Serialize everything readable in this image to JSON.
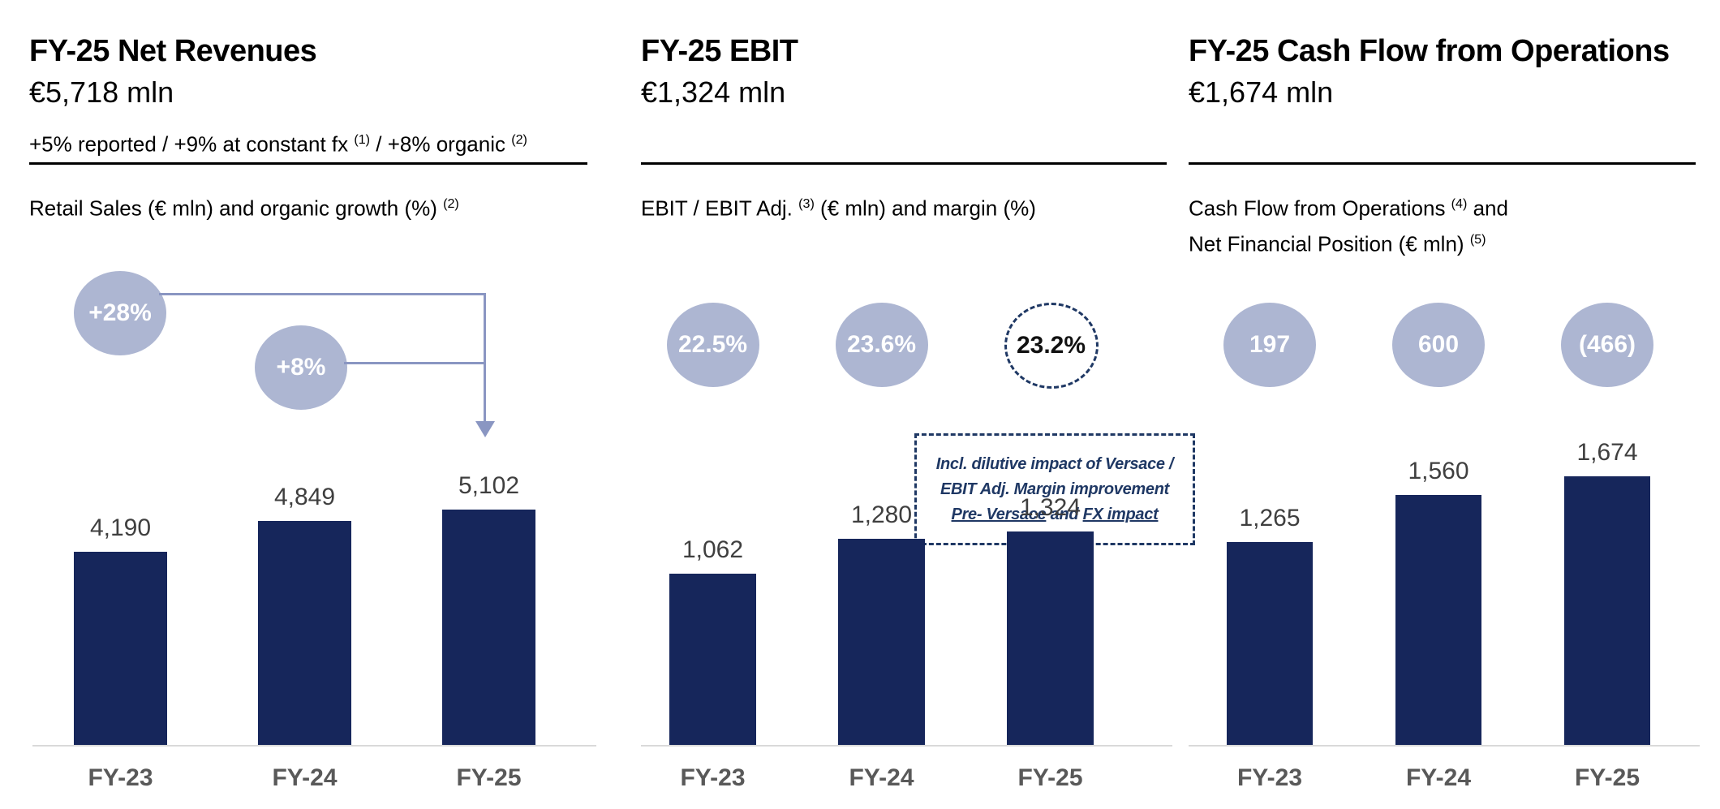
{
  "slide": {
    "panels": [
      {
        "title": "FY-25 Net Revenues",
        "amount": "€5,718 mln",
        "growth": {
          "s1": "+5% reported  / +9% at constant fx ",
          "sup1": "(1)",
          "s2": " / +8% organic ",
          "sup2": "(2)"
        },
        "caption": {
          "s1": "Retail Sales (€ mln) and organic growth (%) ",
          "sup": "(2)"
        }
      },
      {
        "title": "FY-25 EBIT",
        "amount": "€1,324 mln",
        "caption": {
          "s1": "EBIT / EBIT Adj. ",
          "sup": "(3)",
          "s2": " (€ mln) and margin (%)"
        }
      },
      {
        "title": "FY-25 Cash Flow from Operations",
        "amount": "€1,674 mln",
        "caption": {
          "s1": "Cash Flow from Operations ",
          "sup": "(4)",
          "s2": " and"
        },
        "caption2": {
          "s1": "Net Financial Position (€ mln) ",
          "sup": "(5)"
        }
      }
    ],
    "versace_note": {
      "line1": "Incl. dilutive impact of Versace /",
      "line2": "EBIT Adj. Margin improvement",
      "line3_u1": "Pre- Versace",
      "line3_mid": " and ",
      "line3_u2": "FX impact"
    }
  },
  "chart_data": [
    {
      "type": "bar",
      "title": "Retail Sales (€ mln) and organic growth (%)",
      "categories": [
        "FY-23",
        "FY-24",
        "FY-25"
      ],
      "values": [
        4190,
        4849,
        5102
      ],
      "value_labels": [
        "4,190",
        "4,849",
        "5,102"
      ],
      "ylim": [
        0,
        5102
      ],
      "grid": false,
      "legend": "none",
      "annotations": [
        {
          "label": "+28%",
          "shape": "circle-filled",
          "arrow_to": "FY-25"
        },
        {
          "label": "+8%",
          "shape": "circle-filled",
          "arrow_to": "FY-25"
        }
      ]
    },
    {
      "type": "bar",
      "title": "EBIT / EBIT Adj. (€ mln) and margin (%)",
      "categories": [
        "FY-23",
        "FY-24",
        "FY-25"
      ],
      "values": [
        1062,
        1280,
        1324
      ],
      "value_labels": [
        "1,062",
        "1,280",
        "1,324"
      ],
      "ylim": [
        0,
        1324
      ],
      "grid": false,
      "legend": "none",
      "margins_pct": [
        {
          "label": "22.5%",
          "shape": "circle-filled"
        },
        {
          "label": "23.6%",
          "shape": "circle-filled"
        },
        {
          "label": "23.2%",
          "shape": "circle-dashed"
        }
      ],
      "note": "Incl. dilutive impact of Versace / EBIT Adj. Margin improvement Pre- Versace and FX impact"
    },
    {
      "type": "bar",
      "title": "Cash Flow from Operations and Net Financial Position (€ mln)",
      "categories": [
        "FY-23",
        "FY-24",
        "FY-25"
      ],
      "values": [
        1265,
        1560,
        1674
      ],
      "value_labels": [
        "1,265",
        "1,560",
        "1,674"
      ],
      "ylim": [
        0,
        1674
      ],
      "grid": false,
      "legend": "none",
      "nfp_values": [
        {
          "label": "197",
          "shape": "circle-filled"
        },
        {
          "label": "600",
          "shape": "circle-filled"
        },
        {
          "label": "(466)",
          "shape": "circle-filled"
        }
      ]
    }
  ],
  "colors": {
    "bar": "#16265b",
    "bubble_fill": "#adb6d2",
    "bubble_text": "#ffffff",
    "connector": "#8a96c2",
    "dashed_navy": "#1f3864",
    "value_label": "#3f3f3f",
    "category_label": "#595959",
    "baseline": "#d9d9d9"
  }
}
